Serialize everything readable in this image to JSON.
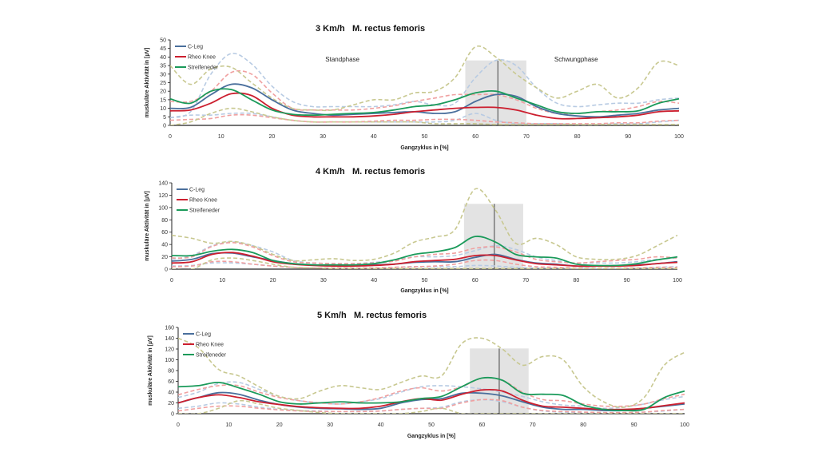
{
  "chart_data": [
    {
      "type": "line",
      "title_speed": "3 Km/h",
      "title_muscle": "M. rectus femoris",
      "xlabel": "Gangzyklus in [%]",
      "ylabel": "muskuläre Aktivität in [µV]",
      "xlim": [
        0,
        100
      ],
      "ylim": [
        0,
        50
      ],
      "xticks": [
        0,
        10,
        20,
        30,
        40,
        50,
        60,
        70,
        80,
        90,
        100
      ],
      "yticks": [
        0,
        5,
        10,
        15,
        20,
        25,
        30,
        35,
        40,
        45,
        50
      ],
      "legend_position": "top-left",
      "annotations": {
        "stance": "Standphase",
        "swing": "Schwungphase"
      },
      "shaded_region": {
        "x_start": 58,
        "x_end": 70,
        "y_top": 38,
        "marker_x": 64.4
      },
      "x": [
        0,
        4,
        8,
        12,
        16,
        20,
        24,
        28,
        32,
        36,
        40,
        44,
        48,
        52,
        56,
        60,
        64,
        68,
        72,
        76,
        80,
        84,
        88,
        92,
        96,
        100
      ],
      "series": [
        {
          "name": "C-Leg",
          "color": "#4a6f9c",
          "values": [
            10,
            10.5,
            18,
            24,
            22,
            15,
            9,
            7,
            6,
            6.5,
            7,
            7.5,
            8,
            7,
            8,
            14,
            18,
            17,
            11,
            7,
            5.5,
            5,
            6,
            7,
            9,
            10
          ]
        },
        {
          "name": "Rheo Knee",
          "color": "#cc1f2f",
          "values": [
            8.5,
            9,
            13,
            18.5,
            17.5,
            10,
            6,
            5,
            5,
            5,
            5.5,
            6.5,
            8,
            9,
            10,
            10.5,
            10.5,
            9,
            6,
            4,
            4,
            4.5,
            5,
            6,
            8,
            8.5
          ]
        },
        {
          "name": "Streifeneder",
          "color": "#1a9a5a",
          "values": [
            15.5,
            13,
            20,
            21,
            15,
            9,
            6.5,
            6,
            6.5,
            7,
            7.5,
            9,
            11,
            12,
            15,
            19,
            20,
            16,
            12,
            8,
            7,
            8,
            8,
            8.5,
            13,
            15.5
          ]
        }
      ],
      "bands": [
        {
          "name": "C-Leg SD upper",
          "color": "#b8cbe3",
          "values": [
            4.5,
            8,
            30,
            42,
            36,
            23,
            14,
            11,
            11,
            11,
            11,
            12,
            14,
            12,
            13,
            28,
            38,
            35,
            22,
            13,
            11,
            12,
            13,
            13,
            15,
            16
          ]
        },
        {
          "name": "C-Leg SD lower",
          "color": "#b8cbe3",
          "values": [
            4.5,
            6,
            6,
            7,
            7,
            5,
            3,
            2,
            2,
            2,
            2,
            2,
            2,
            2,
            3,
            7,
            3,
            1,
            1,
            1,
            0.5,
            0.5,
            1,
            1,
            2,
            3
          ]
        },
        {
          "name": "Rheo Knee SD upper",
          "color": "#f0a0a0",
          "values": [
            14,
            14,
            20,
            31,
            30,
            19,
            10,
            9,
            9,
            9,
            10,
            11.5,
            14,
            16,
            18,
            18,
            18,
            15,
            10,
            7,
            7,
            8,
            9,
            11,
            14,
            13
          ]
        },
        {
          "name": "Rheo Knee SD lower",
          "color": "#f0a0a0",
          "values": [
            3,
            3.5,
            4,
            6,
            6,
            4.5,
            3,
            2,
            2,
            2,
            2.5,
            3,
            3,
            3.5,
            3.5,
            3,
            2,
            1.5,
            1,
            1,
            1,
            1,
            1.5,
            1.5,
            2.5,
            3
          ]
        },
        {
          "name": "Streifeneder SD upper",
          "color": "#c8c890",
          "values": [
            35,
            24,
            33,
            34,
            25,
            16,
            10,
            9,
            9,
            12,
            15,
            15,
            19,
            20,
            28,
            46,
            40,
            30,
            22,
            16,
            20,
            24,
            16,
            22,
            37,
            35
          ]
        },
        {
          "name": "Streifeneder SD lower",
          "color": "#c8c890",
          "values": [
            0,
            2,
            7,
            10,
            8,
            5,
            3,
            2,
            2,
            2,
            2,
            2,
            2,
            1,
            1,
            1,
            0.5,
            0.5,
            0.5,
            0.5,
            0.5,
            0.5,
            0.5,
            0.5,
            0.5,
            0.5
          ]
        }
      ]
    },
    {
      "type": "line",
      "title_speed": "4 Km/h",
      "title_muscle": "M. rectus femoris",
      "xlabel": "Gangzyklus in [%]",
      "ylabel": "muskuläre Aktivität in [µV]",
      "xlim": [
        0,
        100
      ],
      "ylim": [
        0,
        140
      ],
      "xticks": [
        0,
        10,
        20,
        30,
        40,
        50,
        60,
        70,
        80,
        90,
        100
      ],
      "yticks": [
        0,
        20,
        40,
        60,
        80,
        100,
        120,
        140
      ],
      "legend_position": "top-left",
      "annotations": {},
      "shaded_region": {
        "x_start": 57.8,
        "x_end": 69.5,
        "y_top": 106,
        "marker_x": 63.8
      },
      "x": [
        0,
        4,
        8,
        12,
        16,
        20,
        24,
        28,
        32,
        36,
        40,
        44,
        48,
        52,
        56,
        60,
        64,
        68,
        72,
        76,
        80,
        84,
        88,
        92,
        96,
        100
      ],
      "series": [
        {
          "name": "C-Leg",
          "color": "#4a6f9c",
          "values": [
            13,
            16,
            25,
            26,
            20,
            14,
            9,
            7,
            6,
            6,
            7,
            8,
            11,
            12,
            12,
            19,
            24,
            16,
            10,
            8,
            5,
            5,
            6,
            7,
            9,
            12
          ]
        },
        {
          "name": "Rheo Knee",
          "color": "#cc1f2f",
          "values": [
            10,
            12,
            24,
            27,
            21,
            12,
            8,
            6,
            5,
            5,
            6,
            8,
            12,
            14,
            16,
            22,
            22,
            15,
            9,
            7,
            5,
            5,
            5,
            6,
            9,
            11
          ]
        },
        {
          "name": "Streifeneder",
          "color": "#1a9a5a",
          "values": [
            22,
            22,
            29,
            32,
            27,
            14,
            9,
            7,
            7,
            7,
            9,
            15,
            24,
            28,
            35,
            53,
            44,
            24,
            20,
            18,
            8,
            6,
            6,
            9,
            15,
            20
          ]
        }
      ],
      "bands": [
        {
          "name": "C-Leg SD upper",
          "color": "#b8cbe3",
          "values": [
            16,
            22,
            38,
            44,
            38,
            28,
            14,
            10,
            9,
            9,
            11,
            14,
            20,
            20,
            22,
            30,
            38,
            32,
            20,
            14,
            10,
            10,
            10,
            12,
            16,
            18
          ]
        },
        {
          "name": "C-Leg SD lower",
          "color": "#b8cbe3",
          "values": [
            5,
            6,
            10,
            10,
            8,
            5,
            3,
            2,
            2,
            2,
            2,
            3,
            4,
            4,
            4,
            6,
            5,
            3,
            2,
            2,
            1,
            1,
            1,
            2,
            3,
            4
          ]
        },
        {
          "name": "Rheo Knee SD upper",
          "color": "#f0a0a0",
          "values": [
            18,
            20,
            37,
            43,
            36,
            22,
            12,
            10,
            9,
            9,
            10,
            13,
            20,
            24,
            26,
            34,
            36,
            28,
            16,
            12,
            10,
            12,
            14,
            16,
            20,
            18
          ]
        },
        {
          "name": "Rheo Knee SD lower",
          "color": "#f0a0a0",
          "values": [
            4,
            5,
            12,
            12,
            8,
            5,
            3,
            2,
            2,
            2,
            2,
            3,
            4,
            5,
            8,
            14,
            14,
            8,
            4,
            3,
            2,
            2,
            2,
            2,
            3,
            3
          ]
        },
        {
          "name": "Streifeneder SD upper",
          "color": "#c8c890",
          "values": [
            55,
            50,
            42,
            45,
            38,
            24,
            14,
            15,
            17,
            14,
            16,
            26,
            44,
            52,
            64,
            130,
            96,
            42,
            50,
            40,
            20,
            16,
            16,
            22,
            38,
            55
          ]
        },
        {
          "name": "Streifeneder SD lower",
          "color": "#c8c890",
          "values": [
            0,
            0,
            15,
            18,
            14,
            8,
            3,
            2,
            1,
            1,
            1,
            1,
            1,
            1,
            1,
            1,
            1,
            1,
            1,
            1,
            1,
            1,
            1,
            1,
            1,
            1
          ]
        }
      ]
    },
    {
      "type": "line",
      "title_speed": "5 Km/h",
      "title_muscle": "M. rectus femoris",
      "xlabel": "Gangzyklus in [%]",
      "ylabel": "muskuläre Aktivität in [µV]",
      "xlim": [
        0,
        100
      ],
      "ylim": [
        0,
        160
      ],
      "xticks": [
        0,
        10,
        20,
        30,
        40,
        50,
        60,
        70,
        80,
        90,
        100
      ],
      "yticks": [
        0,
        20,
        40,
        60,
        80,
        100,
        120,
        140,
        160
      ],
      "legend_position": "top-left",
      "annotations": {},
      "shaded_region": {
        "x_start": 57.6,
        "x_end": 69.2,
        "y_top": 121,
        "marker_x": 63.4
      },
      "x": [
        0,
        4,
        8,
        12,
        16,
        20,
        24,
        28,
        32,
        36,
        40,
        44,
        48,
        52,
        56,
        60,
        64,
        68,
        72,
        76,
        80,
        84,
        88,
        92,
        96,
        100
      ],
      "series": [
        {
          "name": "C-Leg",
          "color": "#4a6f9c",
          "values": [
            20,
            30,
            39,
            36,
            25,
            17,
            12,
            10,
            9,
            8,
            10,
            20,
            26,
            28,
            38,
            38,
            33,
            22,
            12,
            8,
            8,
            6,
            6,
            10,
            14,
            18
          ]
        },
        {
          "name": "Rheo Knee",
          "color": "#cc1f2f",
          "values": [
            20,
            30,
            35,
            30,
            22,
            17,
            13,
            11,
            10,
            10,
            14,
            22,
            28,
            25,
            36,
            44,
            42,
            25,
            14,
            12,
            10,
            8,
            8,
            10,
            15,
            20
          ]
        },
        {
          "name": "Streifeneder",
          "color": "#1a9a5a",
          "values": [
            50,
            52,
            58,
            48,
            36,
            22,
            18,
            20,
            22,
            20,
            20,
            22,
            28,
            32,
            50,
            66,
            62,
            38,
            36,
            34,
            16,
            8,
            6,
            8,
            30,
            42
          ]
        }
      ],
      "bands": [
        {
          "name": "C-Leg SD upper",
          "color": "#b8cbe3",
          "values": [
            30,
            40,
            56,
            58,
            45,
            32,
            24,
            20,
            18,
            22,
            28,
            40,
            50,
            52,
            50,
            46,
            40,
            32,
            22,
            16,
            14,
            10,
            12,
            18,
            26,
            32
          ]
        },
        {
          "name": "C-Leg SD lower",
          "color": "#b8cbe3",
          "values": [
            10,
            14,
            20,
            18,
            12,
            8,
            6,
            5,
            4,
            4,
            5,
            8,
            10,
            12,
            22,
            26,
            22,
            12,
            5,
            3,
            2,
            2,
            2,
            3,
            5,
            8
          ]
        },
        {
          "name": "Rheo Knee SD upper",
          "color": "#f0a0a0",
          "values": [
            35,
            45,
            52,
            52,
            40,
            30,
            24,
            20,
            18,
            22,
            30,
            42,
            48,
            42,
            50,
            66,
            62,
            40,
            26,
            24,
            18,
            14,
            14,
            18,
            28,
            36
          ]
        },
        {
          "name": "Rheo Knee SD lower",
          "color": "#f0a0a0",
          "values": [
            5,
            10,
            14,
            14,
            10,
            7,
            5,
            4,
            4,
            4,
            5,
            8,
            10,
            10,
            20,
            26,
            24,
            12,
            6,
            4,
            3,
            2,
            2,
            3,
            6,
            8
          ]
        },
        {
          "name": "Streifeneder SD upper",
          "color": "#c8c890",
          "values": [
            140,
            122,
            82,
            70,
            50,
            32,
            28,
            42,
            52,
            48,
            45,
            58,
            70,
            70,
            130,
            140,
            120,
            90,
            106,
            100,
            50,
            22,
            12,
            30,
            90,
            114
          ]
        },
        {
          "name": "Streifeneder SD lower",
          "color": "#c8c890",
          "values": [
            0,
            0,
            10,
            24,
            18,
            10,
            6,
            2,
            0,
            0,
            0,
            0,
            4,
            10,
            0,
            0,
            0,
            0,
            0,
            0,
            0,
            0,
            0,
            0,
            0,
            0
          ]
        }
      ]
    }
  ]
}
